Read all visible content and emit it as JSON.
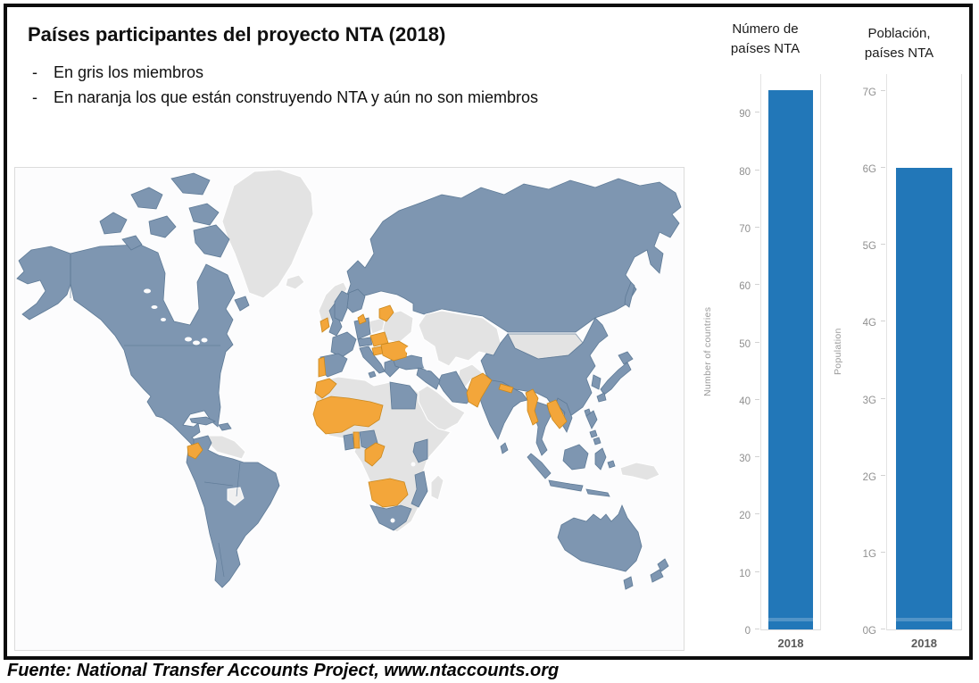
{
  "header": {
    "title": "Países participantes del proyecto NTA (2018)",
    "bullet_marker": "-",
    "bullets": [
      "En gris los miembros",
      "En naranja los que están construyendo NTA y aún no son miembros"
    ]
  },
  "map": {
    "member_color": "#7e96b1",
    "candidate_color": "#f3a63a",
    "nonmember_color": "#e3e3e3",
    "ocean_color": "#fcfcfd"
  },
  "chart_data": [
    {
      "type": "bar",
      "title": "Número de países NTA",
      "title_lines": [
        "Número de",
        "países NTA"
      ],
      "ylabel": "Number of countries",
      "categories": [
        "2018"
      ],
      "values": [
        94
      ],
      "yticks": {
        "values": [
          0,
          10,
          20,
          30,
          40,
          50,
          60,
          70,
          80,
          90
        ],
        "labels": [
          "0",
          "10",
          "20",
          "30",
          "40",
          "50",
          "60",
          "70",
          "80",
          "90"
        ]
      },
      "axis_max": 96.9,
      "ylim": [
        0,
        96.9
      ],
      "grid": false,
      "bar_color": "#2277b8"
    },
    {
      "type": "bar",
      "title": "Población, países NTA",
      "title_lines": [
        "Población,",
        "países NTA"
      ],
      "ylabel": "Population",
      "categories": [
        "2018"
      ],
      "values": [
        6.0
      ],
      "yticks": {
        "values": [
          0,
          1,
          2,
          3,
          4,
          5,
          6,
          7
        ],
        "labels": [
          "0G",
          "1G",
          "2G",
          "3G",
          "4G",
          "5G",
          "6G",
          "7G"
        ]
      },
      "axis_max": 7.23,
      "ylim": [
        0,
        7.23
      ],
      "grid": false,
      "bar_color": "#2277b8"
    }
  ],
  "footer": {
    "text": "Fuente: National Transfer Accounts Project, www.ntaccounts.org"
  }
}
